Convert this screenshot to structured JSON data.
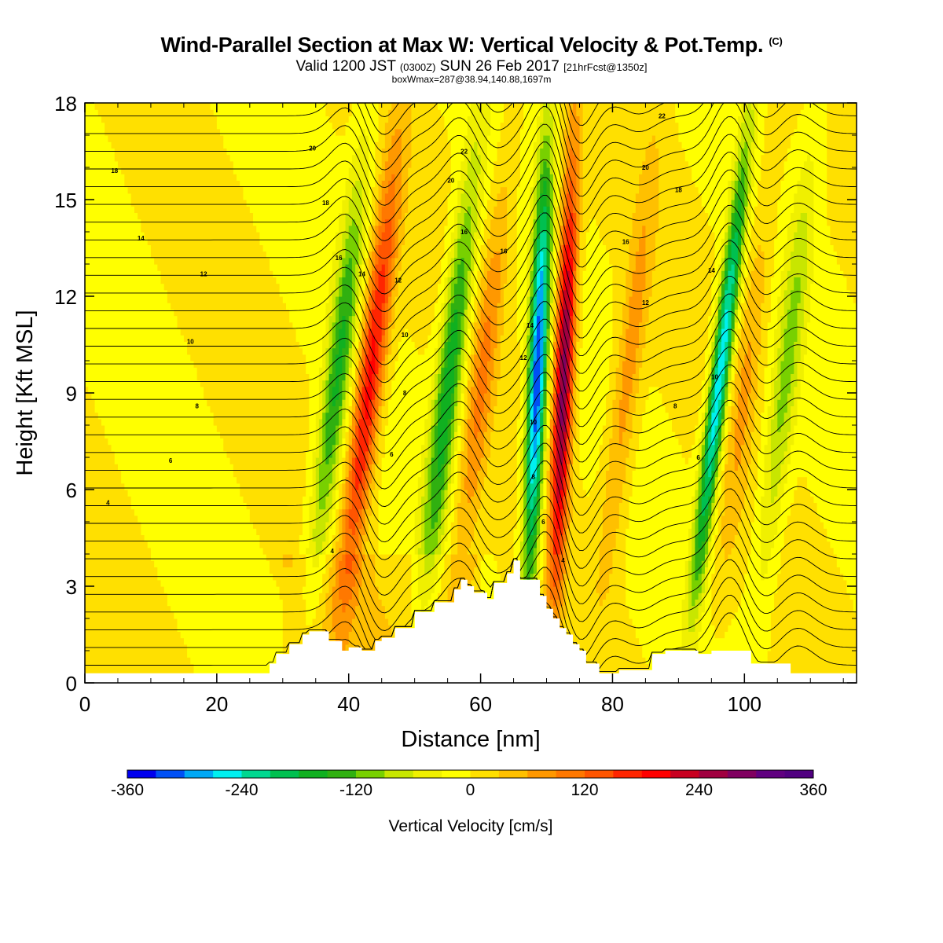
{
  "header": {
    "title": "Wind-Parallel Section at Max W: Vertical Velocity & Pot.Temp.",
    "copyright": "(C)",
    "valid_prefix": "Valid 1200 JST",
    "valid_utc": "(0300Z)",
    "valid_date": "SUN 26 Feb 2017",
    "forecast": "[21hrFcst@1350z]",
    "box_info": "boxWmax=287@38.94,140.88,1697m"
  },
  "chart_data": {
    "type": "heatmap",
    "title": "Wind-Parallel Section at Max W: Vertical Velocity & Pot.Temp.",
    "xlabel": "Distance [nm]",
    "ylabel": "Height [Kft MSL]",
    "xlim": [
      0,
      117
    ],
    "ylim": [
      0,
      18
    ],
    "x_ticks": [
      0,
      20,
      40,
      60,
      80,
      100
    ],
    "y_ticks": [
      0,
      3,
      6,
      9,
      12,
      15,
      18
    ],
    "colorbar": {
      "label": "Vertical Velocity [cm/s]",
      "ticks": [
        -360,
        -240,
        -120,
        0,
        120,
        240,
        360
      ],
      "levels": [
        -360,
        -330,
        -300,
        -270,
        -240,
        -210,
        -180,
        -150,
        -120,
        -90,
        -60,
        -30,
        0,
        30,
        60,
        90,
        120,
        150,
        180,
        210,
        240,
        270,
        300,
        330,
        360
      ],
      "colors": [
        "#0000ee",
        "#0050f5",
        "#00a8f5",
        "#00f0f0",
        "#00d890",
        "#00c050",
        "#10b020",
        "#30b010",
        "#78d000",
        "#c8e600",
        "#f0f000",
        "#ffff00",
        "#ffe000",
        "#ffc000",
        "#ff9800",
        "#ff7800",
        "#ff5500",
        "#ff2500",
        "#ff0000",
        "#c80020",
        "#a00040",
        "#800060",
        "#600080",
        "#500080"
      ]
    },
    "features": [
      {
        "type": "downdraft",
        "x": 38,
        "peak": -150
      },
      {
        "type": "updraft",
        "x": 43,
        "peak": 200
      },
      {
        "type": "downdraft",
        "x": 55,
        "peak": -180
      },
      {
        "type": "updraft",
        "x": 60,
        "peak": 90
      },
      {
        "type": "downdraft",
        "x": 68.5,
        "peak": -330
      },
      {
        "type": "updraft",
        "x": 72.5,
        "peak": 287
      },
      {
        "type": "updraft",
        "x": 82,
        "peak": 80
      },
      {
        "type": "downdraft",
        "x": 96,
        "peak": -280
      },
      {
        "type": "updraft",
        "x": 100,
        "peak": 60
      },
      {
        "type": "downdraft",
        "x": 106,
        "peak": -100
      }
    ],
    "terrain": {
      "x": [
        0,
        28,
        28,
        29,
        29,
        31,
        31,
        33,
        33,
        34,
        34,
        35,
        35,
        37,
        37,
        39,
        39,
        40,
        40,
        42,
        42,
        44,
        44,
        45,
        45,
        47,
        47,
        50,
        50,
        53,
        53,
        56,
        56,
        57,
        57,
        58,
        58,
        59,
        59,
        61,
        61,
        62,
        62,
        64,
        64,
        65,
        65,
        66,
        66,
        69,
        69,
        70,
        70,
        71,
        71,
        72,
        72,
        73,
        73,
        74,
        74,
        75,
        75,
        76,
        76,
        78,
        78,
        81,
        81,
        86,
        86,
        88,
        88,
        93,
        93,
        95,
        95,
        101,
        101,
        107,
        107,
        117
      ],
      "height": [
        0.3,
        0.3,
        0.6,
        0.6,
        0.9,
        0.9,
        1.2,
        1.2,
        1.5,
        1.5,
        1.6,
        1.6,
        1.6,
        1.6,
        1.3,
        1.3,
        1.0,
        1.0,
        1.1,
        1.1,
        1.0,
        1.0,
        1.3,
        1.3,
        1.4,
        1.4,
        1.7,
        1.7,
        2.2,
        2.2,
        2.5,
        2.5,
        2.9,
        2.9,
        3.2,
        3.2,
        3.0,
        3.0,
        2.8,
        2.8,
        2.6,
        2.6,
        3.1,
        3.1,
        3.4,
        3.4,
        3.8,
        3.8,
        3.2,
        3.2,
        2.7,
        2.7,
        2.3,
        2.3,
        2.0,
        2.0,
        1.7,
        1.7,
        1.5,
        1.5,
        1.2,
        1.2,
        1.0,
        1.0,
        0.6,
        0.6,
        0.3,
        0.3,
        0.4,
        0.4,
        0.9,
        0.9,
        1.0,
        1.0,
        0.9,
        0.9,
        1.0,
        1.0,
        0.6,
        0.6,
        0.3,
        0.3
      ]
    },
    "theta_contour_labels": [
      {
        "text": "4",
        "x": 3.5,
        "y": 5.6
      },
      {
        "text": "6",
        "x": 13,
        "y": 6.9
      },
      {
        "text": "8",
        "x": 17,
        "y": 8.6
      },
      {
        "text": "10",
        "x": 16,
        "y": 10.6
      },
      {
        "text": "12",
        "x": 18,
        "y": 12.7
      },
      {
        "text": "14",
        "x": 8.5,
        "y": 13.8
      },
      {
        "text": "18",
        "x": 4.5,
        "y": 15.9
      },
      {
        "text": "20",
        "x": 34.5,
        "y": 16.6
      },
      {
        "text": "18",
        "x": 36.5,
        "y": 14.9
      },
      {
        "text": "16",
        "x": 38.5,
        "y": 13.2
      },
      {
        "text": "14",
        "x": 42,
        "y": 12.7
      },
      {
        "text": "12",
        "x": 47.5,
        "y": 12.5
      },
      {
        "text": "10",
        "x": 48.5,
        "y": 10.8
      },
      {
        "text": "8",
        "x": 48.5,
        "y": 9.0
      },
      {
        "text": "6",
        "x": 46.5,
        "y": 7.1
      },
      {
        "text": "4",
        "x": 37.5,
        "y": 4.1
      },
      {
        "text": "22",
        "x": 57.5,
        "y": 16.5
      },
      {
        "text": "20",
        "x": 55.5,
        "y": 15.6
      },
      {
        "text": "16",
        "x": 57.5,
        "y": 14.0
      },
      {
        "text": "16",
        "x": 63.5,
        "y": 13.4
      },
      {
        "text": "14",
        "x": 67.5,
        "y": 11.1
      },
      {
        "text": "12",
        "x": 66.5,
        "y": 10.1
      },
      {
        "text": "10",
        "x": 68,
        "y": 8.1
      },
      {
        "text": "8",
        "x": 68,
        "y": 6.4
      },
      {
        "text": "6",
        "x": 69.5,
        "y": 5.0
      },
      {
        "text": "4",
        "x": 72.5,
        "y": 3.8
      },
      {
        "text": "22",
        "x": 87.5,
        "y": 17.6
      },
      {
        "text": "20",
        "x": 85,
        "y": 16.0
      },
      {
        "text": "18",
        "x": 90,
        "y": 15.3
      },
      {
        "text": "16",
        "x": 82,
        "y": 13.7
      },
      {
        "text": "12",
        "x": 85,
        "y": 11.8
      },
      {
        "text": "14",
        "x": 95,
        "y": 12.8
      },
      {
        "text": "10",
        "x": 95.5,
        "y": 9.5
      },
      {
        "text": "8",
        "x": 89.5,
        "y": 8.6
      },
      {
        "text": "6",
        "x": 93,
        "y": 7.0
      }
    ]
  }
}
